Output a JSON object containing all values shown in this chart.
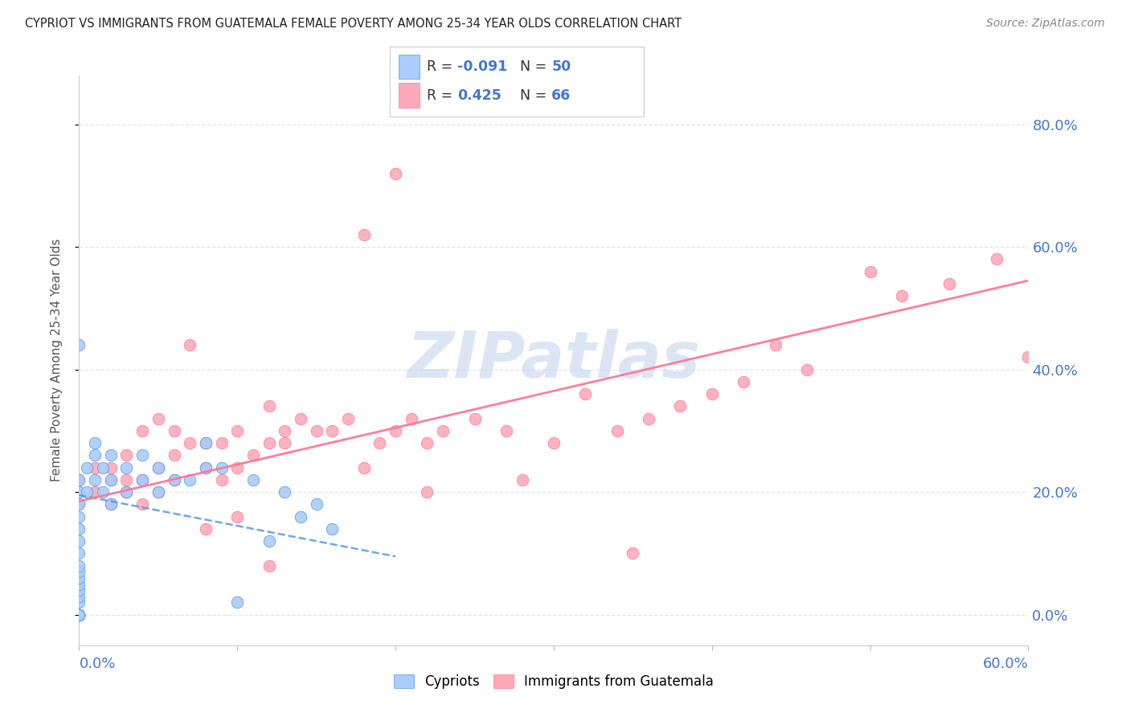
{
  "title": "CYPRIOT VS IMMIGRANTS FROM GUATEMALA FEMALE POVERTY AMONG 25-34 YEAR OLDS CORRELATION CHART",
  "source": "Source: ZipAtlas.com",
  "ylabel": "Female Poverty Among 25-34 Year Olds",
  "ytick_labels": [
    "0.0%",
    "20.0%",
    "40.0%",
    "60.0%",
    "80.0%"
  ],
  "ytick_values": [
    0.0,
    0.2,
    0.4,
    0.6,
    0.8
  ],
  "xlim": [
    0.0,
    0.6
  ],
  "ylim": [
    -0.05,
    0.88
  ],
  "legend_group1_label": "Cypriots",
  "legend_group2_label": "Immigrants from Guatemala",
  "R1": -0.091,
  "N1": 50,
  "R2": 0.425,
  "N2": 66,
  "color1": "#aaccff",
  "color2": "#ffaabb",
  "line1_color": "#5599dd",
  "line2_color": "#ff7799",
  "background_color": "#ffffff",
  "grid_color": "#e0e4ee",
  "title_color": "#222222",
  "watermark": "ZIPatlas",
  "watermark_color": "#c5d5ee",
  "cypriot_x": [
    0.0,
    0.0,
    0.0,
    0.0,
    0.0,
    0.0,
    0.0,
    0.0,
    0.0,
    0.0,
    0.0,
    0.0,
    0.0,
    0.0,
    0.0,
    0.0,
    0.0,
    0.0,
    0.0,
    0.0,
    0.0,
    0.0,
    0.005,
    0.005,
    0.01,
    0.01,
    0.01,
    0.015,
    0.015,
    0.02,
    0.02,
    0.02,
    0.03,
    0.03,
    0.04,
    0.04,
    0.05,
    0.05,
    0.06,
    0.07,
    0.08,
    0.08,
    0.09,
    0.1,
    0.11,
    0.12,
    0.13,
    0.14,
    0.15,
    0.16
  ],
  "cypriot_y": [
    0.0,
    0.0,
    0.0,
    0.0,
    0.0,
    0.0,
    0.0,
    0.02,
    0.03,
    0.04,
    0.05,
    0.06,
    0.07,
    0.08,
    0.1,
    0.12,
    0.14,
    0.16,
    0.18,
    0.2,
    0.22,
    0.44,
    0.2,
    0.24,
    0.22,
    0.26,
    0.28,
    0.2,
    0.24,
    0.18,
    0.22,
    0.26,
    0.2,
    0.24,
    0.22,
    0.26,
    0.2,
    0.24,
    0.22,
    0.22,
    0.24,
    0.28,
    0.24,
    0.02,
    0.22,
    0.12,
    0.2,
    0.16,
    0.18,
    0.14
  ],
  "guatemala_x": [
    0.0,
    0.0,
    0.01,
    0.01,
    0.02,
    0.02,
    0.02,
    0.03,
    0.03,
    0.03,
    0.04,
    0.04,
    0.04,
    0.05,
    0.05,
    0.05,
    0.06,
    0.06,
    0.06,
    0.07,
    0.07,
    0.08,
    0.08,
    0.09,
    0.09,
    0.1,
    0.1,
    0.11,
    0.12,
    0.12,
    0.13,
    0.13,
    0.14,
    0.15,
    0.16,
    0.17,
    0.18,
    0.19,
    0.2,
    0.21,
    0.22,
    0.23,
    0.25,
    0.27,
    0.3,
    0.32,
    0.34,
    0.36,
    0.38,
    0.4,
    0.42,
    0.44,
    0.46,
    0.5,
    0.52,
    0.55,
    0.58,
    0.6,
    0.35,
    0.22,
    0.1,
    0.08,
    0.18,
    0.28,
    0.12,
    0.2
  ],
  "guatemala_y": [
    0.18,
    0.22,
    0.2,
    0.24,
    0.18,
    0.22,
    0.24,
    0.2,
    0.22,
    0.26,
    0.18,
    0.22,
    0.3,
    0.2,
    0.24,
    0.32,
    0.22,
    0.26,
    0.3,
    0.28,
    0.44,
    0.24,
    0.28,
    0.22,
    0.28,
    0.24,
    0.3,
    0.26,
    0.28,
    0.34,
    0.3,
    0.28,
    0.32,
    0.3,
    0.3,
    0.32,
    0.24,
    0.28,
    0.3,
    0.32,
    0.28,
    0.3,
    0.32,
    0.3,
    0.28,
    0.36,
    0.3,
    0.32,
    0.34,
    0.36,
    0.38,
    0.44,
    0.4,
    0.56,
    0.52,
    0.54,
    0.58,
    0.42,
    0.1,
    0.2,
    0.16,
    0.14,
    0.62,
    0.22,
    0.08,
    0.72
  ]
}
